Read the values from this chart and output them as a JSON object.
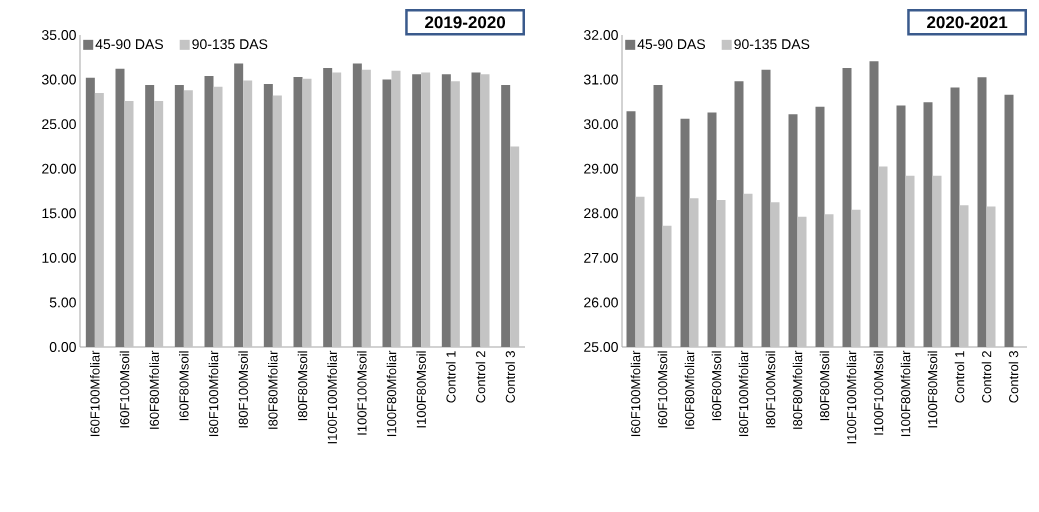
{
  "chart_data": [
    {
      "type": "bar",
      "title": "2019-2020",
      "categories": [
        "I60F100Mfoliar",
        "I60F100Msoil",
        "I60F80Mfoliar",
        "I60F80Msoil",
        "I80F100Mfoliar",
        "I80F100Msoil",
        "I80F80Mfoliar",
        "I80F80Msoil",
        "I100F100Mfoliar",
        "I100F100Msoil",
        "I100F80Mfoliar",
        "I100F80Msoil",
        "Control 1",
        "Control 2",
        "Control 3"
      ],
      "series": [
        {
          "name": "45-90 DAS",
          "color": "#767676",
          "values": [
            30.2,
            31.2,
            29.4,
            29.4,
            30.4,
            31.8,
            29.5,
            30.3,
            31.3,
            31.8,
            30.0,
            30.6,
            30.6,
            30.8,
            29.4
          ]
        },
        {
          "name": "90-135 DAS",
          "color": "#c4c4c4",
          "values": [
            28.5,
            27.6,
            27.6,
            28.8,
            29.2,
            29.9,
            28.2,
            30.1,
            30.8,
            31.1,
            31.0,
            30.8,
            29.8,
            30.6,
            22.5
          ]
        }
      ],
      "ylim": [
        0,
        35
      ],
      "yticks": [
        {
          "value": 0,
          "label": "0.00"
        },
        {
          "value": 5,
          "label": "5.00"
        },
        {
          "value": 10,
          "label": "10.00"
        },
        {
          "value": 15,
          "label": "15.00"
        },
        {
          "value": 20,
          "label": "20.00"
        },
        {
          "value": 25,
          "label": "25.00"
        },
        {
          "value": 30,
          "label": "30.00"
        },
        {
          "value": 35,
          "label": "35.00"
        }
      ],
      "legend": "top left"
    },
    {
      "type": "bar",
      "title": "2020-2021",
      "categories": [
        "I60F100Mfoliar",
        "I60F100Msoil",
        "I60F80Mfoliar",
        "I60F80Msoil",
        "I80F100Mfoliar",
        "I80F100Msoil",
        "I80F80Mfoliar",
        "I80F80Msoil",
        "I100F100Mfoliar",
        "I100F100Msoil",
        "I100F80Mfoliar",
        "I100F80Msoil",
        "Control 1",
        "Control 2",
        "Control 3"
      ],
      "series": [
        {
          "name": "45-90 DAS",
          "color": "#767676",
          "values": [
            30.29,
            30.88,
            30.12,
            30.26,
            30.96,
            31.22,
            30.22,
            30.39,
            31.26,
            31.41,
            30.42,
            30.49,
            30.82,
            31.05,
            30.66
          ]
        },
        {
          "name": "90-135 DAS",
          "color": "#c4c4c4",
          "values": [
            28.37,
            27.72,
            28.34,
            28.3,
            28.44,
            28.25,
            27.92,
            27.98,
            28.08,
            29.05,
            28.84,
            28.84,
            28.18,
            28.15,
            null
          ]
        }
      ],
      "ylim": [
        25,
        32
      ],
      "yticks": [
        {
          "value": 25,
          "label": "25.00"
        },
        {
          "value": 26,
          "label": "26.00"
        },
        {
          "value": 27,
          "label": "27.00"
        },
        {
          "value": 28,
          "label": "28.00"
        },
        {
          "value": 29,
          "label": "29.00"
        },
        {
          "value": 30,
          "label": "30.00"
        },
        {
          "value": 31,
          "label": "31.00"
        },
        {
          "value": 32,
          "label": "32.00"
        }
      ],
      "legend": "top left"
    }
  ]
}
